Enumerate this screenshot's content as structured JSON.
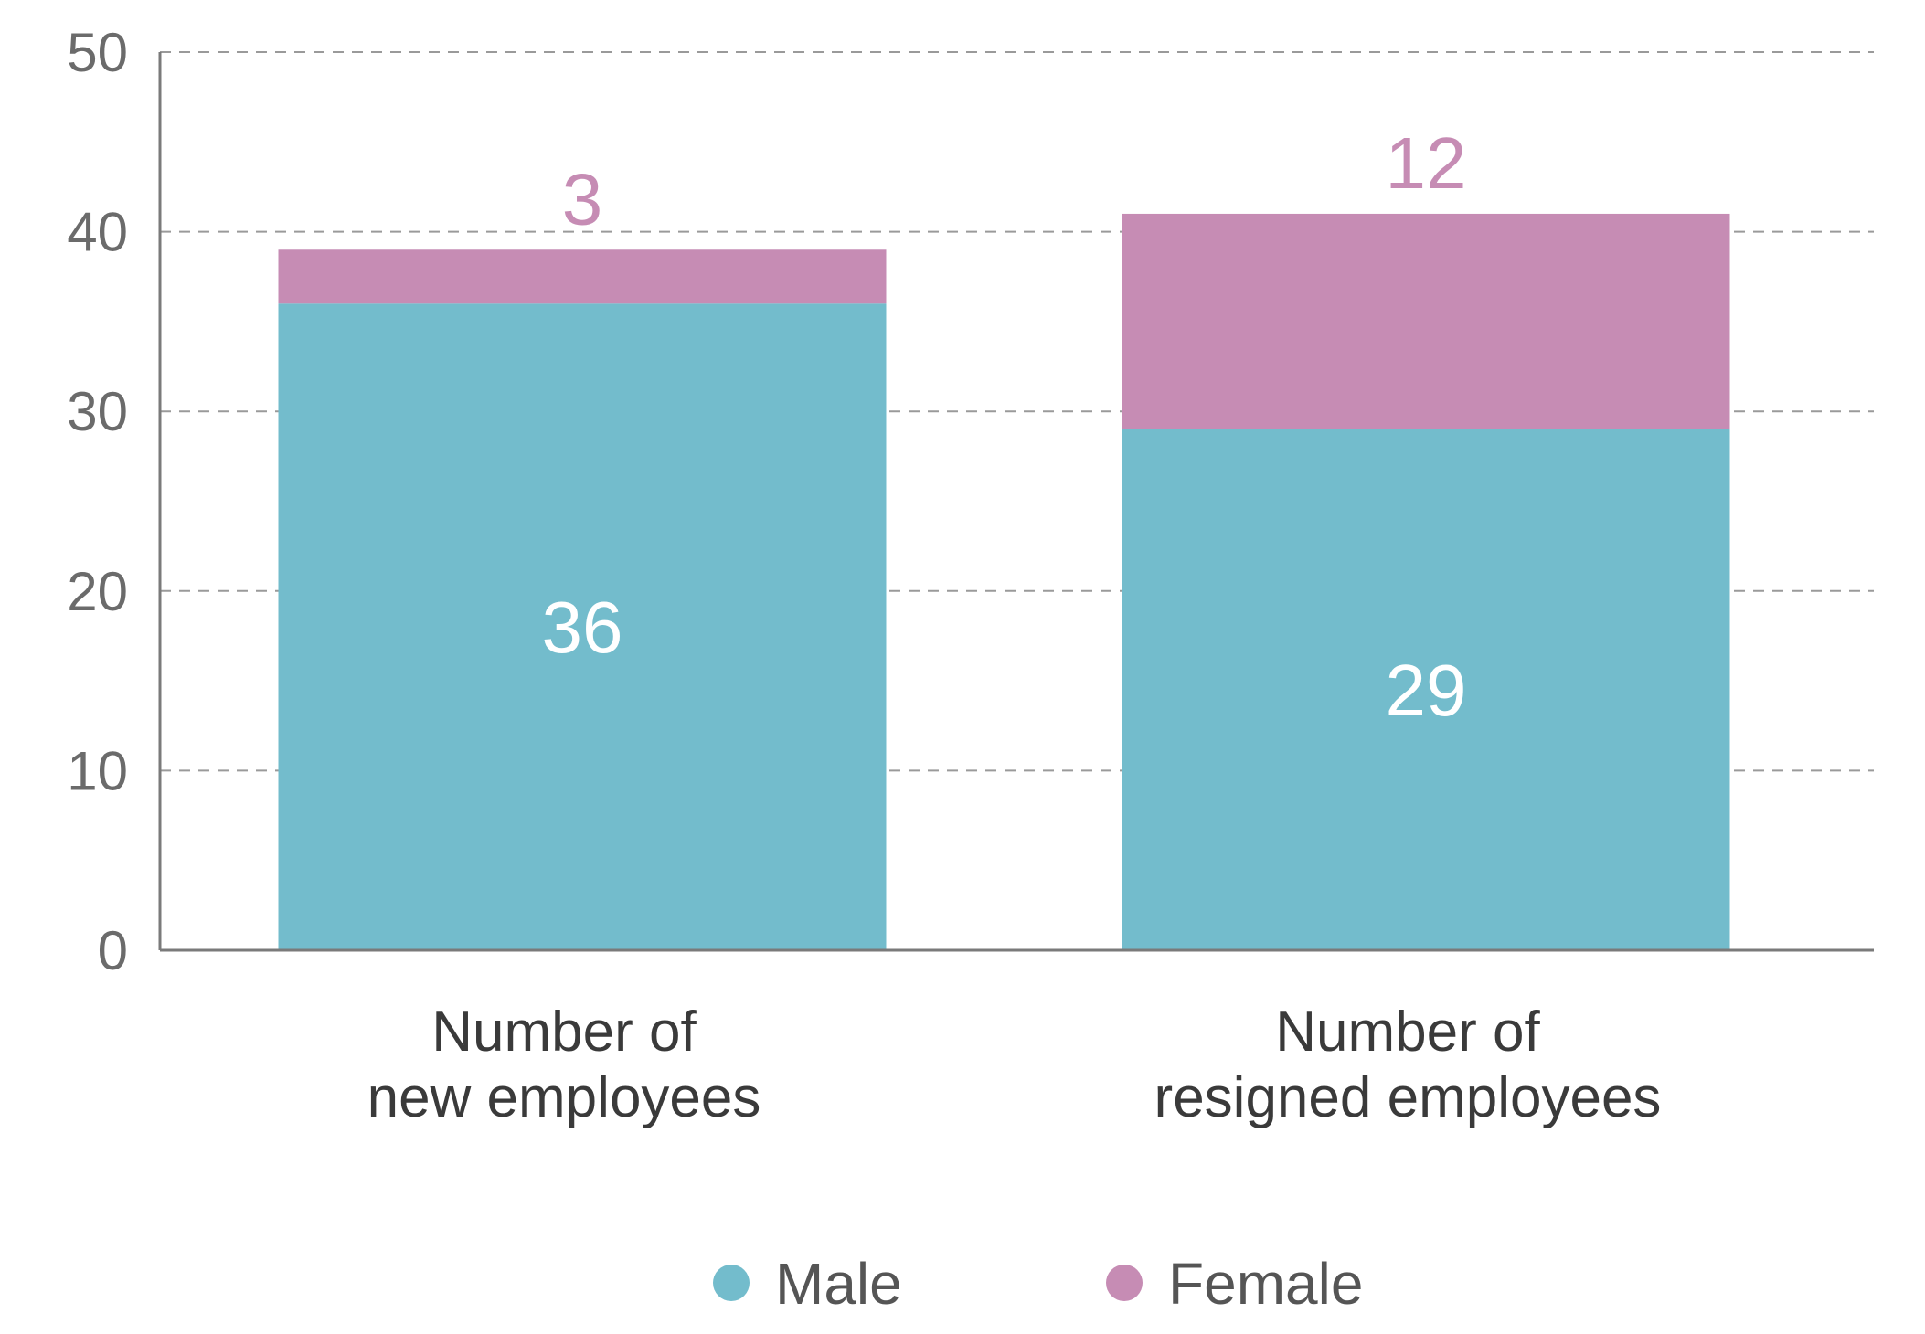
{
  "chart_data": {
    "type": "bar",
    "stacked": true,
    "categories": [
      [
        "Number of",
        "new employees"
      ],
      [
        "Number of",
        "resigned employees"
      ]
    ],
    "series": [
      {
        "name": "Male",
        "values": [
          36,
          29
        ],
        "color": "#73bccc"
      },
      {
        "name": "Female",
        "values": [
          3,
          12
        ],
        "color": "#c68cb4"
      }
    ],
    "ylim": [
      0,
      50
    ],
    "yticks": [
      0,
      10,
      20,
      30,
      40,
      50
    ],
    "grid": true,
    "grid_style": "dashed",
    "legend_position": "bottom-center",
    "title": "",
    "xlabel": "",
    "ylabel": ""
  }
}
